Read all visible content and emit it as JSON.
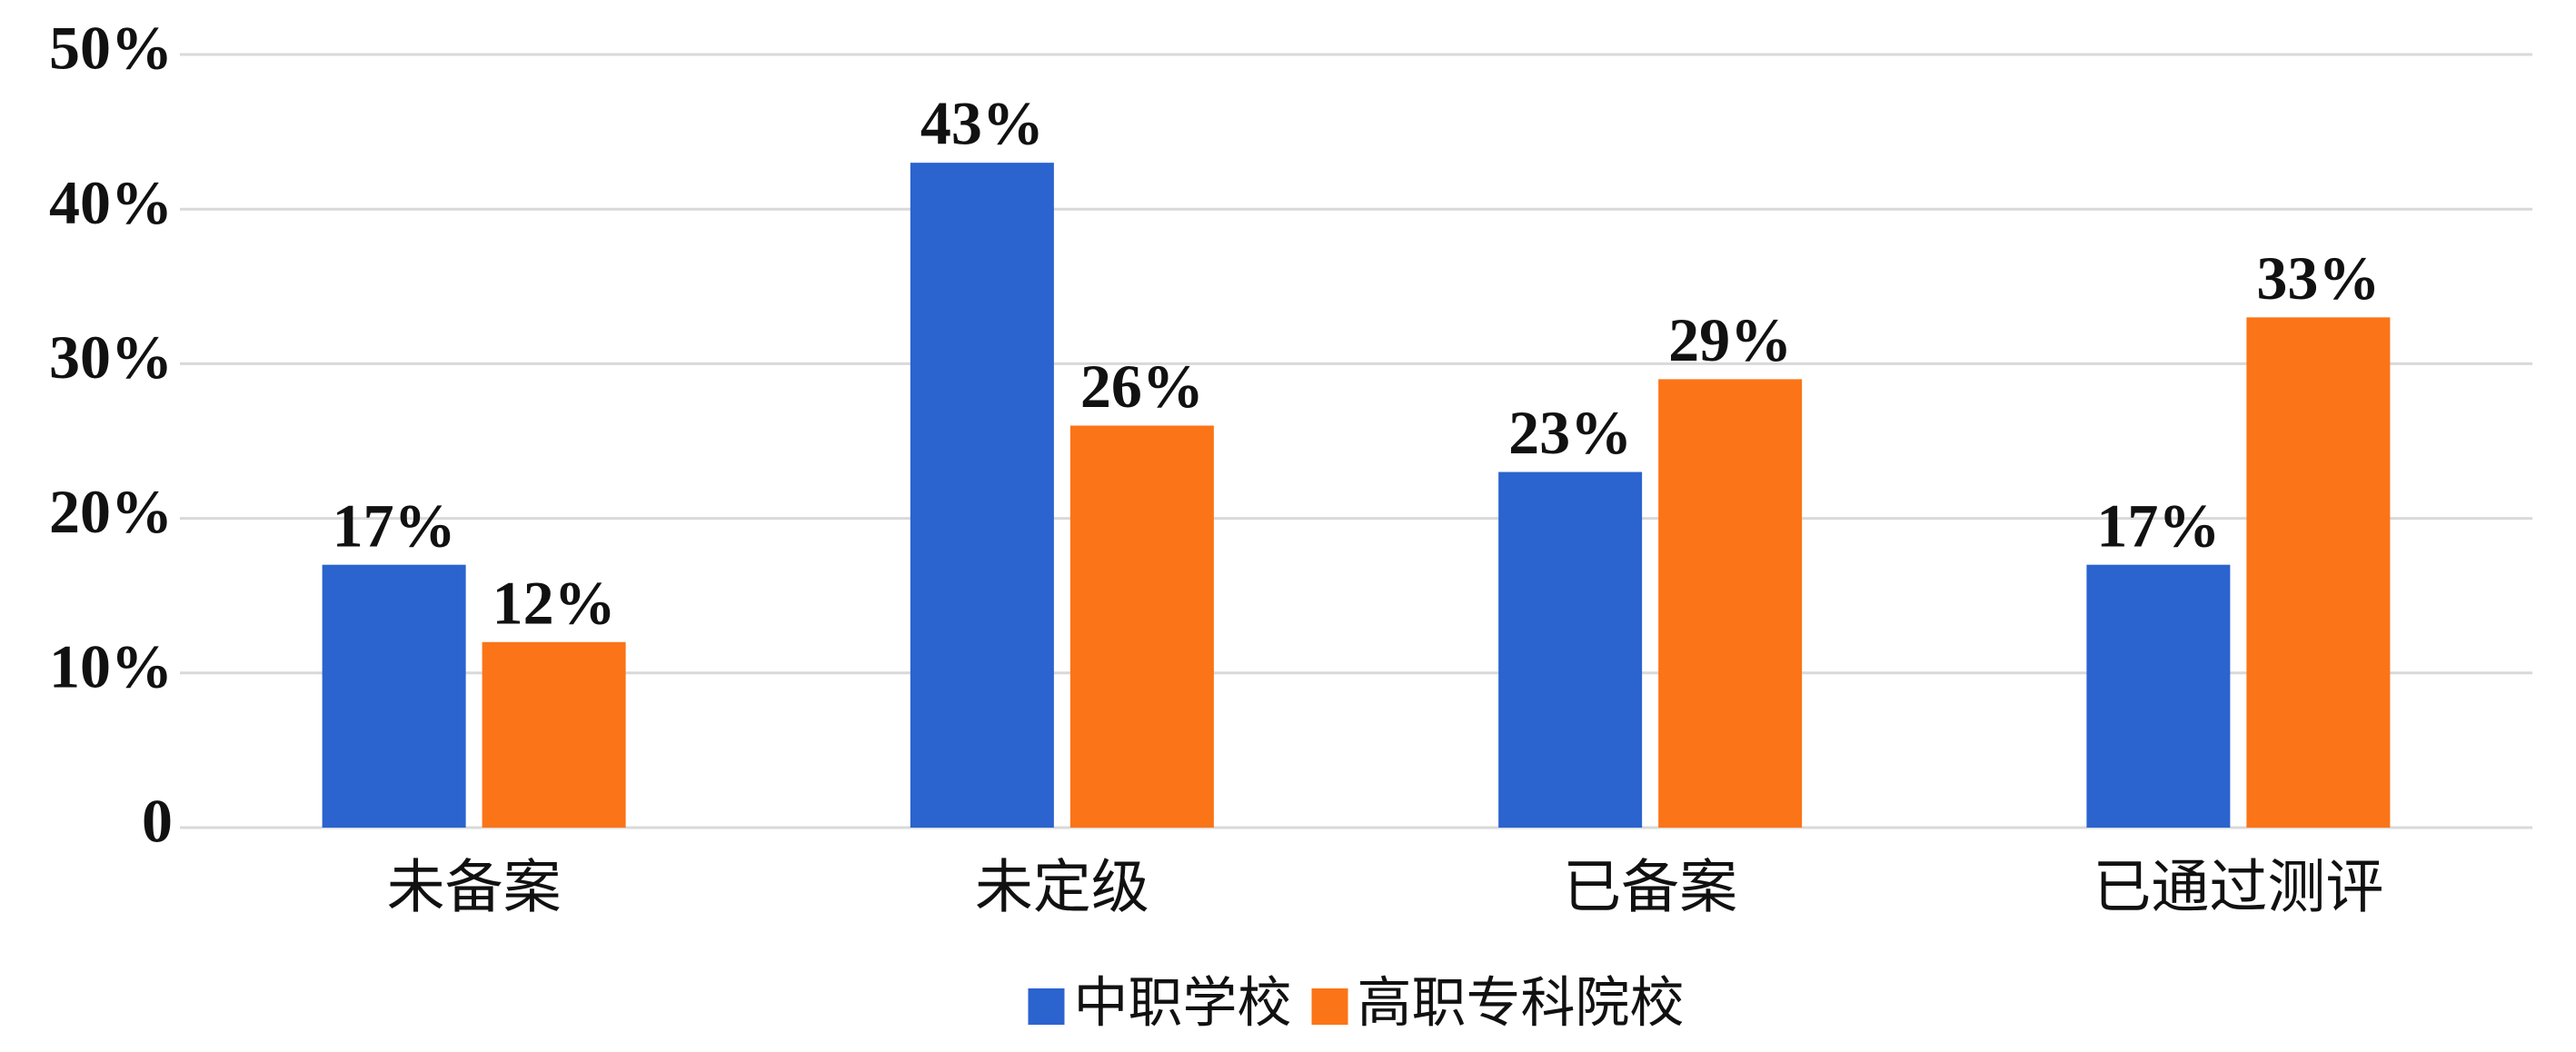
{
  "chart_data": {
    "type": "bar",
    "categories": [
      "未备案",
      "未定级",
      "已备案",
      "已通过测评"
    ],
    "series": [
      {
        "name": "中职学校",
        "color": "#2b63cf",
        "values": [
          17,
          43,
          23,
          17
        ],
        "value_labels": [
          "17%",
          "43%",
          "23%",
          "17%"
        ]
      },
      {
        "name": "高职专科院校",
        "color": "#fb7417",
        "values": [
          12,
          26,
          29,
          33
        ],
        "value_labels": [
          "12%",
          "26%",
          "29%",
          "33%"
        ]
      }
    ],
    "ylim": [
      0,
      50
    ],
    "yticks": [
      0,
      {
        "value": 10,
        "label": "10%"
      },
      {
        "value": 20,
        "label": "20%"
      },
      {
        "value": 30,
        "label": "30%"
      },
      {
        "value": 40,
        "label": "40%"
      },
      {
        "value": 50,
        "label": "50%"
      }
    ],
    "grid": true,
    "legend": "bottom"
  }
}
